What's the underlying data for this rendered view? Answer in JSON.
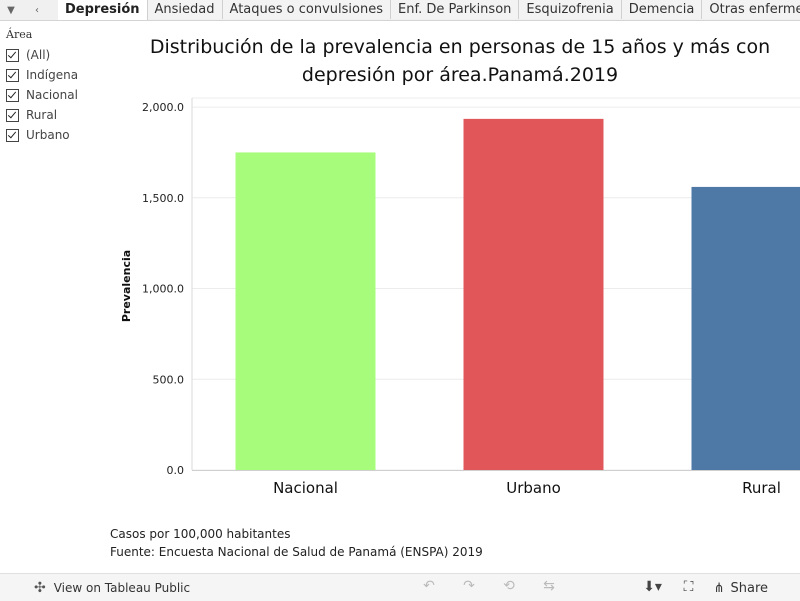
{
  "tabs": {
    "items": [
      "Depresión",
      "Ansiedad",
      "Ataques o convulsiones",
      "Enf. De Parkinson",
      "Esquizofrenia",
      "Demencia",
      "Otras enfermedades"
    ],
    "active_index": 0
  },
  "filter": {
    "title": "Área",
    "items": [
      "(All)",
      "Indígena",
      "Nacional",
      "Rural",
      "Urbano"
    ]
  },
  "chart_data": {
    "type": "bar",
    "title": "Distribución de la prevalencia en personas de 15 años y más con depresión por área.Panamá.2019",
    "title_lines": [
      "Distribución de la prevalencia en personas de 15 años y más con",
      "depresión por área.Panamá.2019"
    ],
    "categories": [
      "Nacional",
      "Urbano",
      "Rural"
    ],
    "values": [
      1750,
      1935,
      1560
    ],
    "colors": [
      "#a8fc7c",
      "#e15759",
      "#4e79a7"
    ],
    "xlabel": "",
    "ylabel": "Prevalencia",
    "ylim": [
      0,
      2050
    ],
    "yticks": [
      0,
      500,
      1000,
      1500,
      2000
    ],
    "ytick_labels": [
      "0.0",
      "500.0",
      "1,000.0",
      "1,500.0",
      "2,000.0"
    ]
  },
  "footnotes": {
    "line1": "Casos por 100,000 habitantes",
    "line2": "Fuente: Encuesta Nacional de Salud de Panamá (ENSPA) 2019"
  },
  "bottombar": {
    "view_label": "View on Tableau Public",
    "share_label": "Share"
  }
}
